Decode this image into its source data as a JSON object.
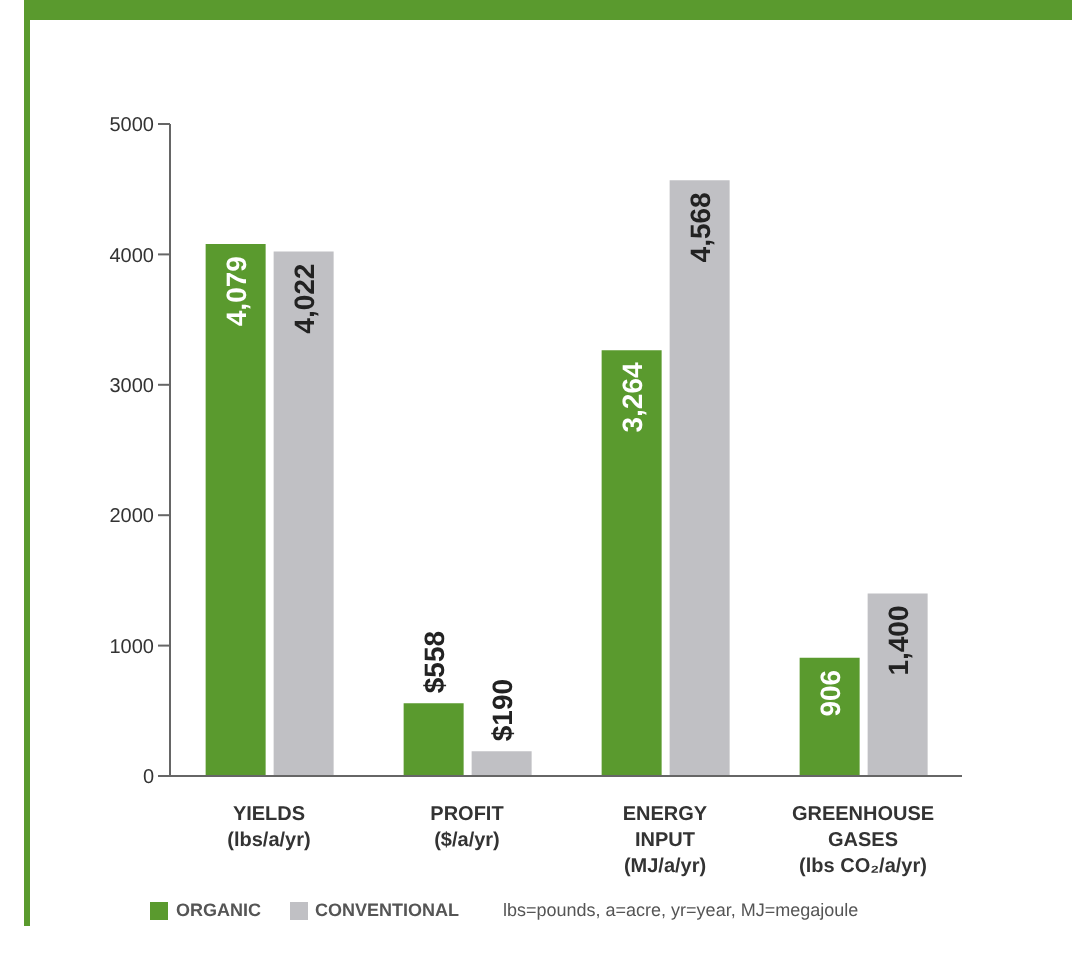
{
  "chart_data": {
    "type": "bar",
    "categories": [
      "YIELDS\n(lbs/a/yr)",
      "PROFIT\n($/a/yr)",
      "ENERGY\nINPUT\n(MJ/a/yr)",
      "GREENHOUSE\nGASES\n(lbs CO₂/a/yr)"
    ],
    "series": [
      {
        "name": "ORGANIC",
        "color": "#5a9a2e",
        "values": [
          4079,
          558,
          3264,
          906
        ],
        "value_labels": [
          "4,079",
          "$558",
          "3,264",
          "906"
        ]
      },
      {
        "name": "CONVENTIONAL",
        "color": "#c0c0c4",
        "values": [
          4022,
          190,
          4568,
          1400
        ],
        "value_labels": [
          "4,022",
          "$190",
          "4,568",
          "1,400"
        ]
      }
    ],
    "ylim": [
      0,
      5000
    ],
    "yticks": [
      0,
      1000,
      2000,
      3000,
      4000,
      5000
    ],
    "grid": false,
    "legend": "bottom left",
    "annotations": [
      "lbs=pounds, a=acre, yr=year, MJ=megajoule"
    ]
  }
}
